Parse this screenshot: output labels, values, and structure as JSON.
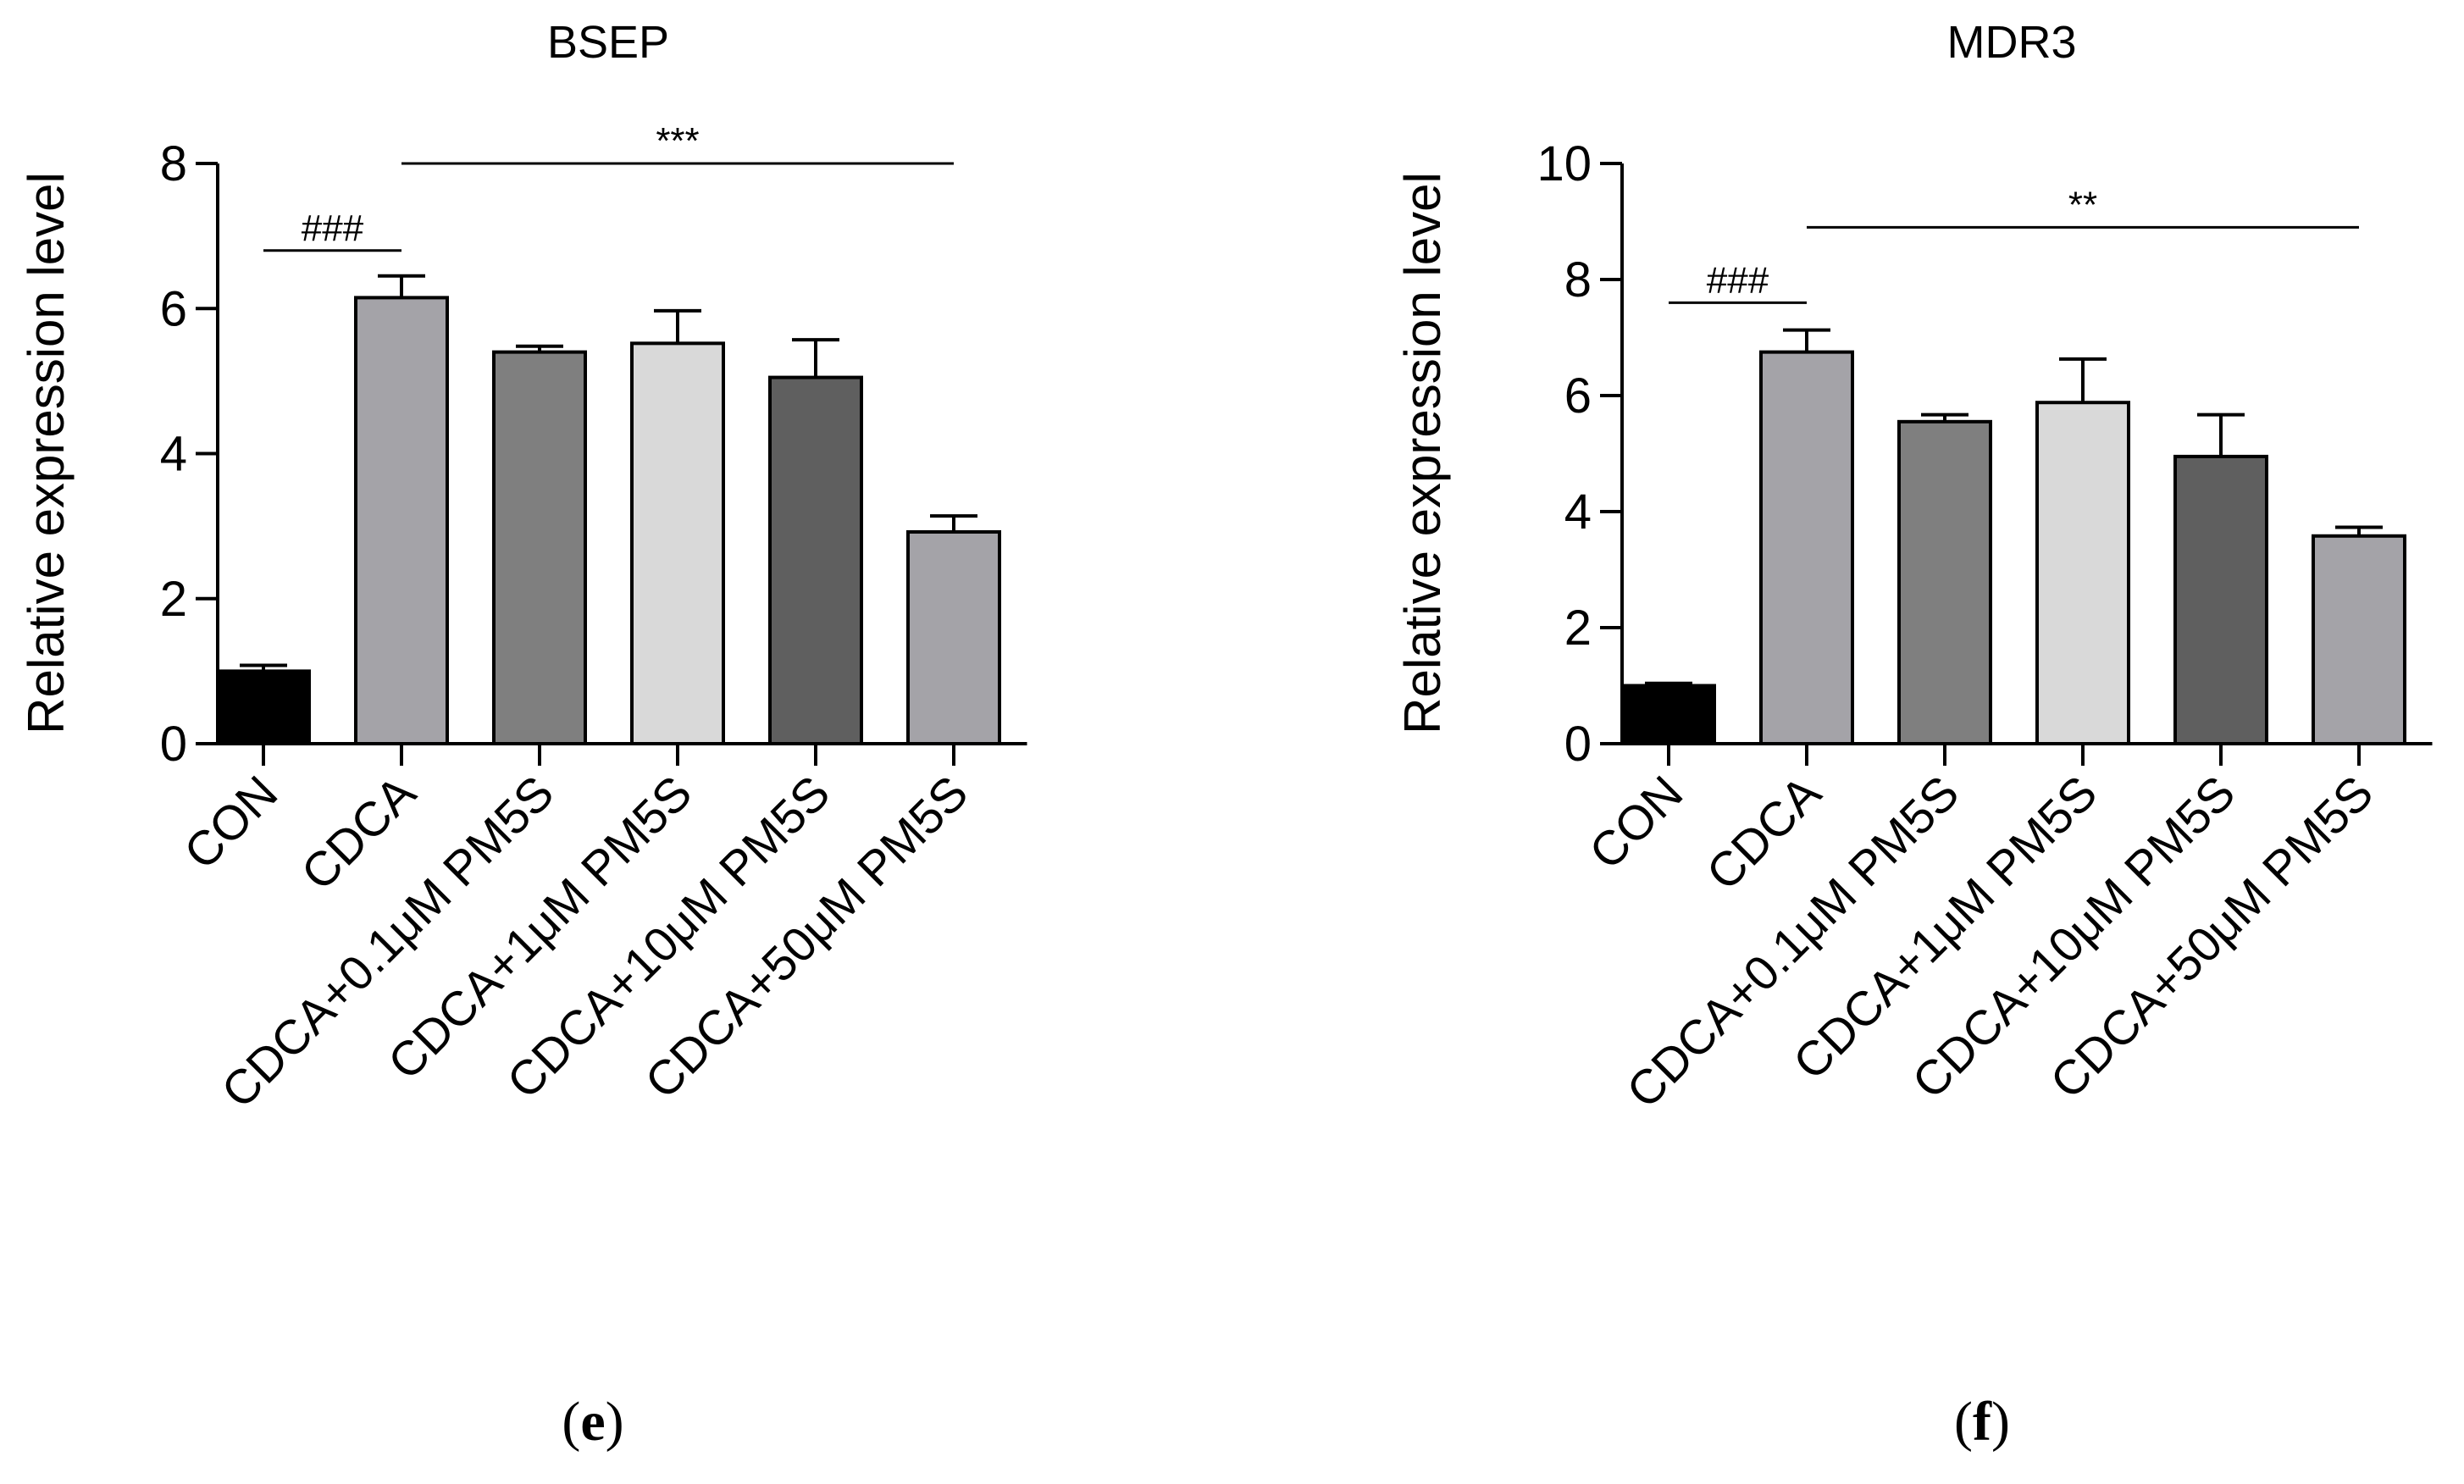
{
  "chart_data": [
    {
      "type": "bar",
      "title": "BSEP",
      "panel_label": "(e)",
      "panel_letter": "e",
      "xlabel": "",
      "ylabel": "Relative expression level",
      "ylim": [
        0,
        8
      ],
      "yticks": [
        0,
        2,
        4,
        6,
        8
      ],
      "categories": [
        "CON",
        "CDCA",
        "CDCA+0.1μM PM5S",
        "CDCA+1μM PM5S",
        "CDCA+10μM PM5S",
        "CDCA+50μM PM5S"
      ],
      "values": [
        1.0,
        6.15,
        5.4,
        5.52,
        5.05,
        2.92
      ],
      "errors": [
        0.08,
        0.3,
        0.08,
        0.45,
        0.52,
        0.22
      ],
      "colors": [
        "#000000",
        "#a4a3a8",
        "#7f7f7f",
        "#d9d9d9",
        "#5f5f5f",
        "#a4a3a8"
      ],
      "significance": [
        {
          "label": "###",
          "from": 0,
          "to": 1,
          "y": 6.8
        },
        {
          "label": "***",
          "from": 1,
          "to": 5,
          "y": 8.0
        }
      ]
    },
    {
      "type": "bar",
      "title": "MDR3",
      "panel_label": "(f)",
      "panel_letter": "f",
      "xlabel": "",
      "ylabel": "Relative expression level",
      "ylim": [
        0,
        10
      ],
      "yticks": [
        0,
        2,
        4,
        6,
        8,
        10
      ],
      "categories": [
        "CON",
        "CDCA",
        "CDCA+0.1μM PM5S",
        "CDCA+1μM PM5S",
        "CDCA+10μM PM5S",
        "CDCA+50μM PM5S"
      ],
      "values": [
        1.0,
        6.75,
        5.55,
        5.88,
        4.95,
        3.58
      ],
      "errors": [
        0.04,
        0.38,
        0.12,
        0.75,
        0.72,
        0.15
      ],
      "colors": [
        "#000000",
        "#a4a3a8",
        "#7f7f7f",
        "#d9d9d9",
        "#5f5f5f",
        "#a4a3a8"
      ],
      "significance": [
        {
          "label": "###",
          "from": 0,
          "to": 1,
          "y": 7.6
        },
        {
          "label": "**",
          "from": 1,
          "to": 5,
          "y": 8.9
        }
      ]
    }
  ]
}
